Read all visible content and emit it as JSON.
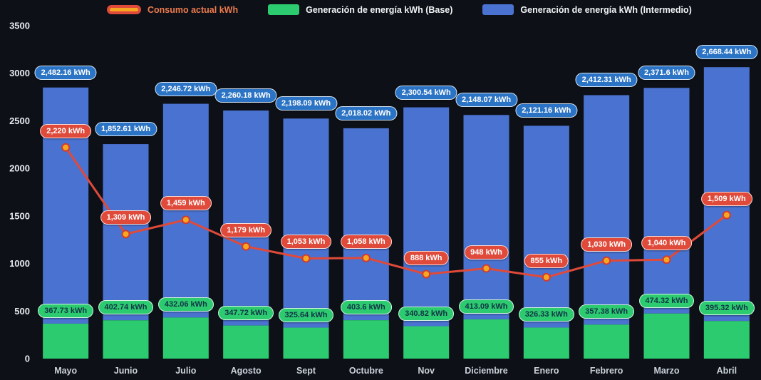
{
  "colors": {
    "background": "#0d1117",
    "bar_base": "#2dcb70",
    "bar_intermedio": "#4a72d1",
    "line_consumo": "#e04a3a",
    "marker_fill": "#f6a722",
    "marker_stroke": "#d23b2e",
    "badge_blue": "#2b73c4",
    "badge_green": "#2dcb70",
    "badge_red": "#e04a3a",
    "axis_text": "#e6e9ee",
    "legend_consumo_text": "#ef7a4e",
    "legend_text": "#f2f4f7"
  },
  "legend": [
    {
      "label": "Consumo actual kWh",
      "swatch": "line-swatch-icon",
      "text_color": "#ef7a4e"
    },
    {
      "label": "Generación de energía kWh (Base)",
      "swatch": "green-bar-swatch-icon",
      "text_color": "#f2f4f7"
    },
    {
      "label": "Generación de energía kWh (Intermedio)",
      "swatch": "blue-bar-swatch-icon",
      "text_color": "#f2f4f7"
    }
  ],
  "chart_data": {
    "type": "bar",
    "stacked": true,
    "title": "",
    "xlabel": "",
    "ylabel": "",
    "ylim": [
      0,
      3500
    ],
    "yticks": [
      0,
      500,
      1000,
      1500,
      2000,
      2500,
      3000,
      3500
    ],
    "grid": false,
    "legend_position": "top",
    "categories": [
      "Mayo",
      "Junio",
      "Julio",
      "Agosto",
      "Sept",
      "Octubre",
      "Nov",
      "Diciembre",
      "Enero",
      "Febrero",
      "Marzo",
      "Abril"
    ],
    "series": [
      {
        "name": "Generación de energía kWh (Base)",
        "type": "bar",
        "color": "#2dcb70",
        "values": [
          367.73,
          402.74,
          432.06,
          347.72,
          325.64,
          403.6,
          340.82,
          413.09,
          326.33,
          357.38,
          474.32,
          395.32
        ],
        "labels": [
          "367.73 kWh",
          "402.74 kWh",
          "432.06 kWh",
          "347.72 kWh",
          "325.64 kWh",
          "403.6 kWh",
          "340.82 kWh",
          "413.09 kWh",
          "326.33 kWh",
          "357.38 kWh",
          "474.32 kWh",
          "395.32 kWh"
        ]
      },
      {
        "name": "Generación de energía kWh (Intermedio)",
        "type": "bar",
        "color": "#4a72d1",
        "values": [
          2482.16,
          1852.61,
          2246.72,
          2260.18,
          2198.09,
          2018.02,
          2300.54,
          2148.07,
          2121.16,
          2412.31,
          2371.6,
          2668.44
        ],
        "labels": [
          "2,482.16 kWh",
          "1,852.61 kWh",
          "2,246.72 kWh",
          "2,260.18 kWh",
          "2,198.09 kWh",
          "2,018.02 kWh",
          "2,300.54 kWh",
          "2,148.07 kWh",
          "2,121.16 kWh",
          "2,412.31 kWh",
          "2,371.6 kWh",
          "2,668.44 kWh"
        ]
      },
      {
        "name": "Consumo actual kWh",
        "type": "line",
        "color": "#e04a3a",
        "values": [
          2220,
          1309,
          1459,
          1179,
          1053,
          1058,
          888,
          948,
          855,
          1030,
          1040,
          1509
        ],
        "labels": [
          "2,220 kWh",
          "1,309 kWh",
          "1,459 kWh",
          "1,179 kWh",
          "1,053 kWh",
          "1,058 kWh",
          "888 kWh",
          "948 kWh",
          "855 kWh",
          "1,030 kWh",
          "1,040 kWh",
          "1,509 kWh"
        ]
      }
    ]
  }
}
